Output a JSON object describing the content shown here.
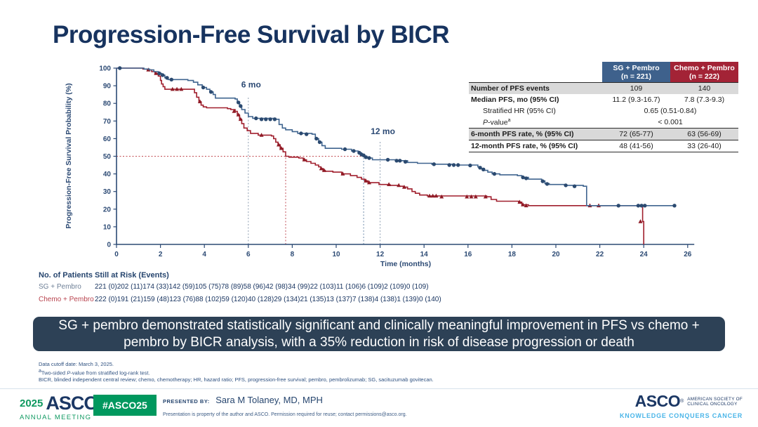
{
  "slide": {
    "title": "Progression-Free Survival by BICR",
    "banner": "SG + pembro demonstrated statistically significant and clinically meaningful improvement in PFS vs chemo + pembro by BICR analysis, with a 35% reduction in risk of disease progression or death"
  },
  "stats_table": {
    "headers": [
      {
        "name": "SG + Pembro",
        "n": "(n = 221)",
        "color": "#3e618c"
      },
      {
        "name": "Chemo + Pembro",
        "n": "(n = 222)",
        "color": "#a32336"
      }
    ],
    "rows": [
      {
        "label": [
          {
            "t": "Number of PFS events"
          }
        ],
        "v1": "109",
        "v2": "140",
        "shade": true,
        "bt": "2"
      },
      {
        "label": [
          {
            "t": "Median PFS, mo (95% CI)"
          }
        ],
        "v1": "11.2 (9.3-16.7)",
        "v2": "7.8 (7.3-9.3)"
      },
      {
        "label": [
          {
            "t": "Stratified HR (95% CI)"
          }
        ],
        "indent": true,
        "span": "0.65 (0.51-0.84)"
      },
      {
        "label": [
          {
            "t": "P",
            "i": true
          },
          {
            "t": "-value"
          },
          {
            "t": "a",
            "sup": true
          }
        ],
        "indent": true,
        "span": "< 0.001"
      },
      {
        "label": [
          {
            "t": "6-month PFS rate, % (95% CI)"
          }
        ],
        "v1": "72 (65-77)",
        "v2": "63 (56-69)",
        "shade": true,
        "bt": "1"
      },
      {
        "label": [
          {
            "t": "12-month PFS rate, % (95% CI)"
          }
        ],
        "v1": "48 (41-56)",
        "v2": "33 (26-40)",
        "bt": "1",
        "bb": "2"
      }
    ]
  },
  "at_risk": {
    "title": "No. of Patients Still at Risk (Events)",
    "rows": [
      {
        "label": "SG + Pembro",
        "color": "#6d7f96",
        "values": [
          "221 (0)",
          "202 (11)",
          "174 (33)",
          "142 (59)",
          "105 (75)",
          "78 (89)",
          "58 (96)",
          "42 (98)",
          "34 (99)",
          "22 (103)",
          "11 (106)",
          "6 (109)",
          "2 (109)",
          "0 (109)"
        ]
      },
      {
        "label": "Chemo + Pembro",
        "color": "#b8434e",
        "values": [
          "222 (0)",
          "191 (21)",
          "159 (48)",
          "123 (76)",
          "88 (102)",
          "59 (120)",
          "40 (128)",
          "29 (134)",
          "21 (135)",
          "13 (137)",
          "7 (138)",
          "4 (138)",
          "1 (139)",
          "0 (140)"
        ]
      }
    ]
  },
  "chart_data": {
    "type": "line",
    "variant": "kaplan-meier-step",
    "xlabel": "Time (months)",
    "ylabel": "Progression-Free Survival Probability (%)",
    "xlim": [
      0,
      26
    ],
    "ylim": [
      0,
      100
    ],
    "xticks": [
      0,
      2,
      4,
      6,
      8,
      10,
      12,
      14,
      16,
      18,
      20,
      22,
      24,
      26
    ],
    "yticks": [
      0,
      10,
      20,
      30,
      40,
      50,
      60,
      70,
      80,
      90,
      100
    ],
    "grid": false,
    "series": [
      {
        "name": "Chemo + Pembro",
        "color": "#a01f2d",
        "censor_shape": "triangle",
        "censor_color": "#8f1b26",
        "steps": [
          [
            0,
            100
          ],
          [
            1.2,
            99.5
          ],
          [
            1.4,
            99
          ],
          [
            1.6,
            98
          ],
          [
            1.75,
            97
          ],
          [
            1.9,
            95.5
          ],
          [
            2.0,
            93
          ],
          [
            2.05,
            91
          ],
          [
            2.12,
            89.5
          ],
          [
            2.2,
            88
          ],
          [
            3.45,
            88
          ],
          [
            3.55,
            86
          ],
          [
            3.65,
            83.5
          ],
          [
            3.75,
            81
          ],
          [
            3.85,
            79
          ],
          [
            3.95,
            78
          ],
          [
            4.1,
            77.5
          ],
          [
            5.05,
            77
          ],
          [
            5.2,
            76.5
          ],
          [
            5.4,
            75.5
          ],
          [
            5.5,
            73.5
          ],
          [
            5.6,
            71
          ],
          [
            5.7,
            68.5
          ],
          [
            5.8,
            66
          ],
          [
            5.95,
            64.5
          ],
          [
            6.1,
            63
          ],
          [
            6.45,
            62
          ],
          [
            7.05,
            61.5
          ],
          [
            7.15,
            60
          ],
          [
            7.25,
            58
          ],
          [
            7.35,
            56.5
          ],
          [
            7.45,
            54.5
          ],
          [
            7.58,
            52.5
          ],
          [
            7.7,
            50
          ],
          [
            7.85,
            49.5
          ],
          [
            8.3,
            49
          ],
          [
            8.5,
            48
          ],
          [
            8.65,
            47
          ],
          [
            8.85,
            46
          ],
          [
            9.05,
            45
          ],
          [
            9.2,
            44
          ],
          [
            9.3,
            43
          ],
          [
            9.4,
            42
          ],
          [
            9.5,
            41.5
          ],
          [
            9.85,
            41
          ],
          [
            10.25,
            40
          ],
          [
            10.65,
            39
          ],
          [
            10.95,
            38
          ],
          [
            11.15,
            37
          ],
          [
            11.3,
            36
          ],
          [
            11.45,
            35
          ],
          [
            11.95,
            34
          ],
          [
            12.45,
            33.5
          ],
          [
            12.85,
            33
          ],
          [
            13.05,
            32.5
          ],
          [
            13.25,
            31.5
          ],
          [
            13.45,
            30
          ],
          [
            13.6,
            29
          ],
          [
            13.8,
            28
          ],
          [
            14.15,
            27.5
          ],
          [
            16.85,
            27
          ],
          [
            17.05,
            25.5
          ],
          [
            17.3,
            24.5
          ],
          [
            18.3,
            24
          ],
          [
            18.45,
            22.5
          ],
          [
            18.75,
            22
          ],
          [
            23.85,
            22
          ],
          [
            23.95,
            13
          ],
          [
            24.0,
            13
          ],
          [
            24.0,
            0
          ]
        ],
        "censors": [
          [
            1.45,
            99
          ],
          [
            1.8,
            97
          ],
          [
            2.55,
            88
          ],
          [
            2.75,
            88
          ],
          [
            2.95,
            88
          ],
          [
            3.8,
            81
          ],
          [
            5.35,
            75.5
          ],
          [
            5.55,
            73.5
          ],
          [
            5.65,
            71
          ],
          [
            6.6,
            62
          ],
          [
            7.38,
            56.5
          ],
          [
            7.5,
            54.5
          ],
          [
            8.55,
            48
          ],
          [
            9.32,
            43
          ],
          [
            9.45,
            42
          ],
          [
            10.3,
            40
          ],
          [
            11.35,
            36
          ],
          [
            11.5,
            35
          ],
          [
            12.4,
            34
          ],
          [
            12.85,
            33.5
          ],
          [
            13.1,
            32.5
          ],
          [
            14.25,
            27.5
          ],
          [
            14.4,
            27.5
          ],
          [
            14.55,
            27.5
          ],
          [
            14.8,
            27
          ],
          [
            15.95,
            27
          ],
          [
            16.15,
            27
          ],
          [
            16.35,
            27
          ],
          [
            16.8,
            27
          ],
          [
            18.35,
            24
          ],
          [
            18.5,
            22.5
          ],
          [
            18.65,
            22
          ],
          [
            21.55,
            22
          ],
          [
            21.95,
            22
          ],
          [
            23.85,
            13
          ]
        ]
      },
      {
        "name": "SG + Pembro",
        "color": "#3f648f",
        "censor_shape": "circle",
        "censor_color": "#2b4a70",
        "steps": [
          [
            0,
            100
          ],
          [
            1.25,
            99.5
          ],
          [
            1.5,
            99
          ],
          [
            1.7,
            98
          ],
          [
            1.9,
            97
          ],
          [
            2.05,
            96
          ],
          [
            2.2,
            94.5
          ],
          [
            2.35,
            93.5
          ],
          [
            3.25,
            93
          ],
          [
            3.5,
            92
          ],
          [
            3.7,
            90.5
          ],
          [
            3.9,
            89
          ],
          [
            4.1,
            88
          ],
          [
            4.25,
            86.5
          ],
          [
            4.4,
            85
          ],
          [
            4.5,
            83
          ],
          [
            5.4,
            82.5
          ],
          [
            5.5,
            80.5
          ],
          [
            5.6,
            78.5
          ],
          [
            5.7,
            76.5
          ],
          [
            5.85,
            74.5
          ],
          [
            6.0,
            72.5
          ],
          [
            6.2,
            71.5
          ],
          [
            7.25,
            71
          ],
          [
            7.4,
            68
          ],
          [
            7.55,
            66
          ],
          [
            7.7,
            65
          ],
          [
            8.0,
            64
          ],
          [
            8.25,
            63
          ],
          [
            8.9,
            62.5
          ],
          [
            9.05,
            60
          ],
          [
            9.2,
            58
          ],
          [
            9.35,
            56
          ],
          [
            9.5,
            54.5
          ],
          [
            10.25,
            54
          ],
          [
            10.7,
            53
          ],
          [
            11.0,
            52
          ],
          [
            11.15,
            51
          ],
          [
            11.25,
            50
          ],
          [
            11.4,
            49
          ],
          [
            11.65,
            48
          ],
          [
            12.7,
            47.5
          ],
          [
            13.25,
            46.5
          ],
          [
            13.7,
            46
          ],
          [
            14.35,
            45.5
          ],
          [
            15.4,
            45
          ],
          [
            16.45,
            44
          ],
          [
            16.6,
            43
          ],
          [
            16.75,
            42
          ],
          [
            16.9,
            41
          ],
          [
            17.1,
            40
          ],
          [
            17.45,
            39.5
          ],
          [
            18.25,
            39
          ],
          [
            18.45,
            38
          ],
          [
            18.75,
            37
          ],
          [
            19.35,
            36
          ],
          [
            19.5,
            34.5
          ],
          [
            19.7,
            34
          ],
          [
            20.4,
            33.5
          ],
          [
            21.25,
            33
          ],
          [
            21.4,
            22
          ],
          [
            25.45,
            22
          ]
        ],
        "censors": [
          [
            0.15,
            100
          ],
          [
            1.95,
            97
          ],
          [
            2.1,
            96
          ],
          [
            2.3,
            94.5
          ],
          [
            2.5,
            93.5
          ],
          [
            3.95,
            89
          ],
          [
            4.3,
            86.5
          ],
          [
            5.55,
            80.5
          ],
          [
            5.65,
            78.5
          ],
          [
            6.35,
            71.5
          ],
          [
            6.6,
            71
          ],
          [
            6.8,
            71
          ],
          [
            7.0,
            71
          ],
          [
            7.2,
            71
          ],
          [
            8.4,
            63
          ],
          [
            8.65,
            62.5
          ],
          [
            9.1,
            60
          ],
          [
            9.25,
            58
          ],
          [
            10.4,
            54
          ],
          [
            10.8,
            53
          ],
          [
            11.05,
            52
          ],
          [
            11.15,
            51
          ],
          [
            11.25,
            50.5
          ],
          [
            11.35,
            49.5
          ],
          [
            11.5,
            49
          ],
          [
            12.35,
            48
          ],
          [
            12.75,
            47.5
          ],
          [
            12.9,
            47.5
          ],
          [
            13.15,
            46.9
          ],
          [
            14.45,
            45.5
          ],
          [
            15.15,
            45
          ],
          [
            15.35,
            45
          ],
          [
            15.55,
            45
          ],
          [
            16.1,
            44.8
          ],
          [
            16.55,
            43.5
          ],
          [
            16.7,
            42.5
          ],
          [
            17.2,
            40
          ],
          [
            18.5,
            38
          ],
          [
            18.65,
            37.5
          ],
          [
            19.4,
            35.8
          ],
          [
            19.6,
            34.3
          ],
          [
            20.45,
            33.5
          ],
          [
            20.85,
            33
          ],
          [
            22.85,
            22
          ],
          [
            23.75,
            22
          ],
          [
            23.9,
            22
          ],
          [
            24.05,
            22
          ],
          [
            25.4,
            22
          ]
        ]
      }
    ],
    "reference_lines": [
      {
        "type": "h",
        "y": 50,
        "x1": 0,
        "x2": 11.25,
        "color": "#c14b52"
      },
      {
        "type": "v",
        "x": 6,
        "y1": 0,
        "y2": 83.5,
        "color": "#90a0b2",
        "label": "6 mo",
        "label_y": 89
      },
      {
        "type": "v",
        "x": 7.7,
        "y1": 0,
        "y2": 50,
        "color": "#c25059"
      },
      {
        "type": "v",
        "x": 11.25,
        "y1": 0,
        "y2": 50,
        "color": "#6f8cab"
      },
      {
        "type": "v",
        "x": 12,
        "y1": 0,
        "y2": 58.5,
        "color": "#90a0b2",
        "label": "12 mo",
        "label_y": 62.5
      }
    ]
  },
  "footnotes": [
    [
      {
        "t": "Data cutoff date: March 3, 2025."
      }
    ],
    [
      {
        "t": "a",
        "sup": true
      },
      {
        "t": "Two-sided "
      },
      {
        "t": "P",
        "i": true
      },
      {
        "t": "-value from stratified log-rank test."
      }
    ],
    [
      {
        "t": "BICR, blinded independent central review; chemo, chemotherapy; HR, hazard ratio; PFS, progression-free survival; pembro, pembrolizumab; SG, sacituzumab govitecan."
      }
    ]
  ],
  "footer": {
    "logo_left": {
      "year": "2025",
      "brand": "ASCO",
      "reg": "®",
      "sub": "ANNUAL MEETING"
    },
    "hashtag": "#ASCO25",
    "presented_by_label": "PRESENTED BY:",
    "presenter": "Sara M Tolaney, MD, MPH",
    "permission": "Presentation is property of the author and ASCO. Permission required for reuse; contact permissions@asco.org.",
    "logo_right": {
      "brand": "ASCO",
      "reg": "®",
      "lines": [
        "AMERICAN SOCIETY OF",
        "CLINICAL ONCOLOGY"
      ],
      "tagline": "KNOWLEDGE CONQUERS CANCER"
    }
  }
}
